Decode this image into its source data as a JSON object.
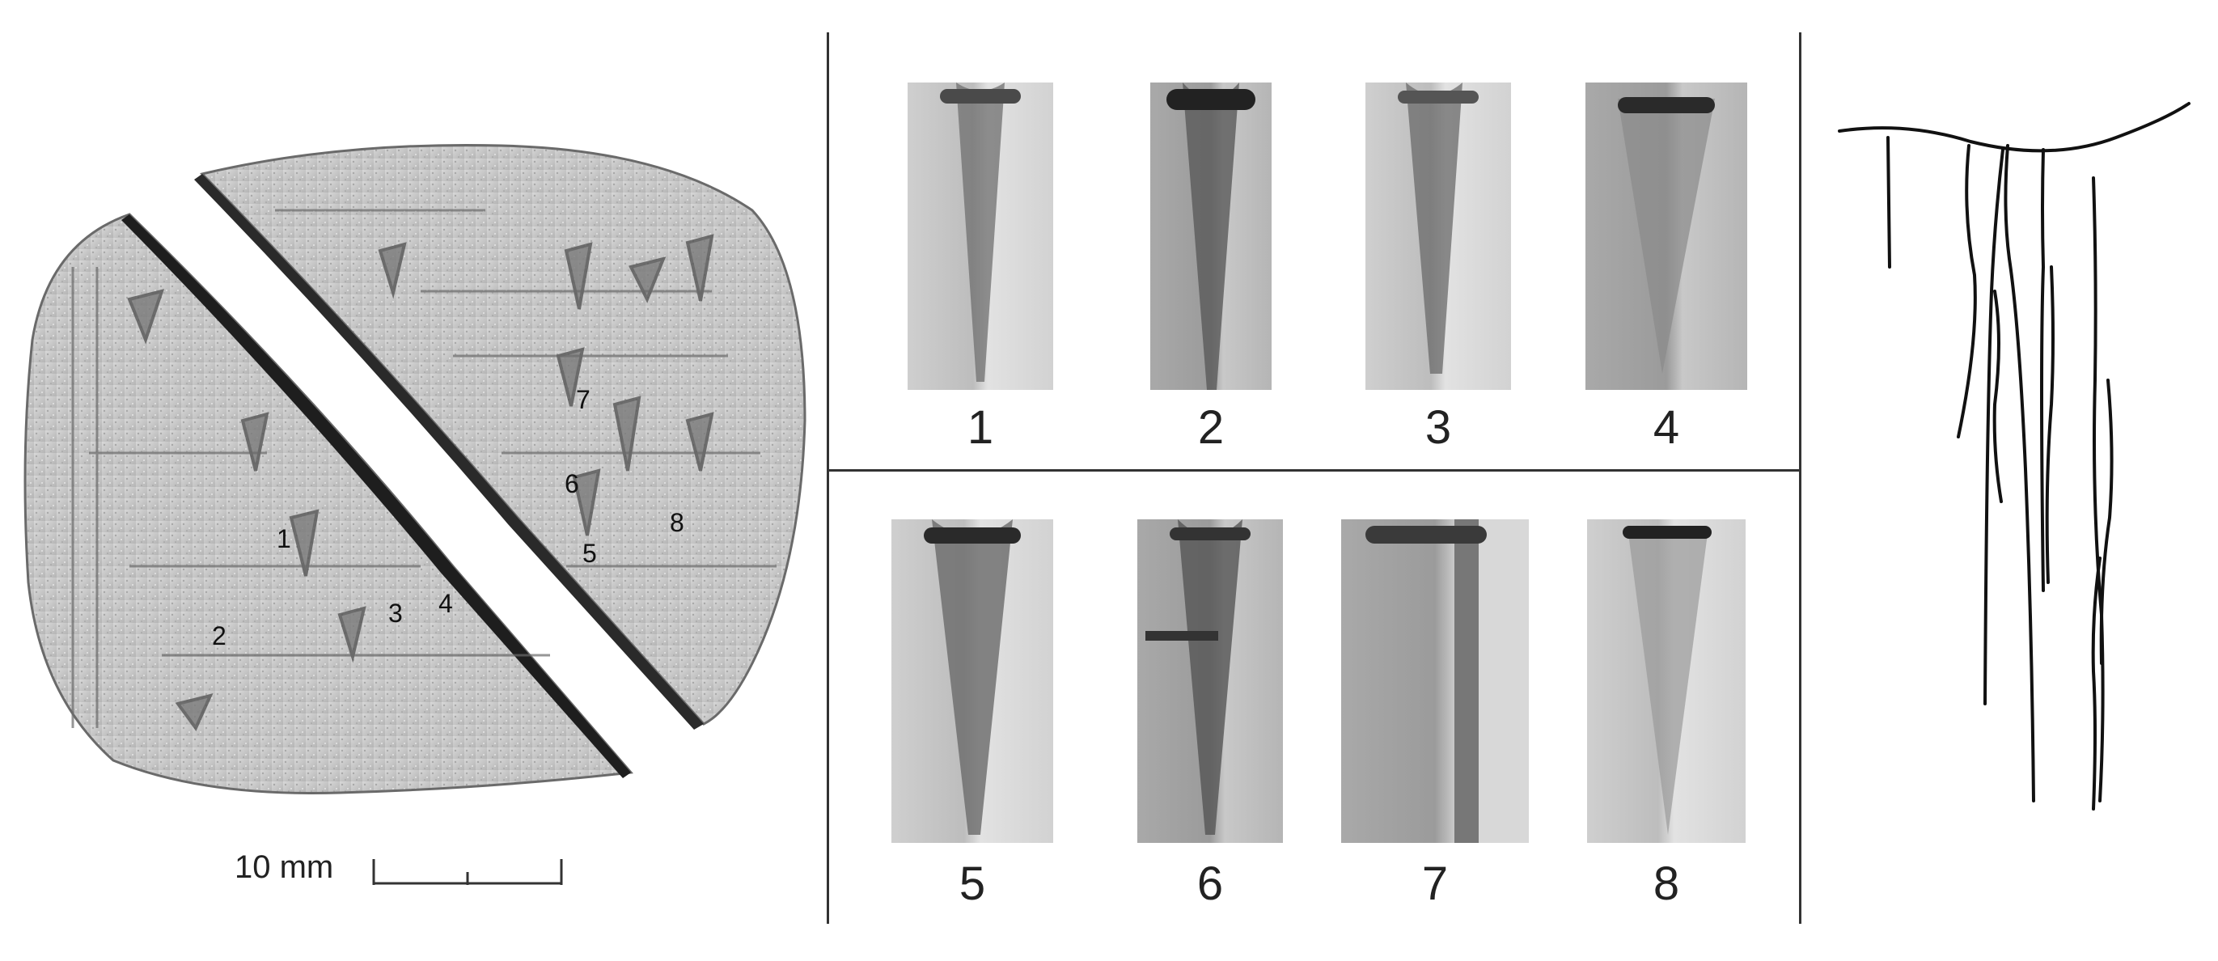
{
  "tablet": {
    "markers": [
      "1",
      "2",
      "3",
      "4",
      "5",
      "6",
      "7",
      "8"
    ],
    "scale_label": "10 mm"
  },
  "details": {
    "top_row": [
      "1",
      "2",
      "3",
      "4"
    ],
    "bottom_row": [
      "5",
      "6",
      "7",
      "8"
    ]
  }
}
